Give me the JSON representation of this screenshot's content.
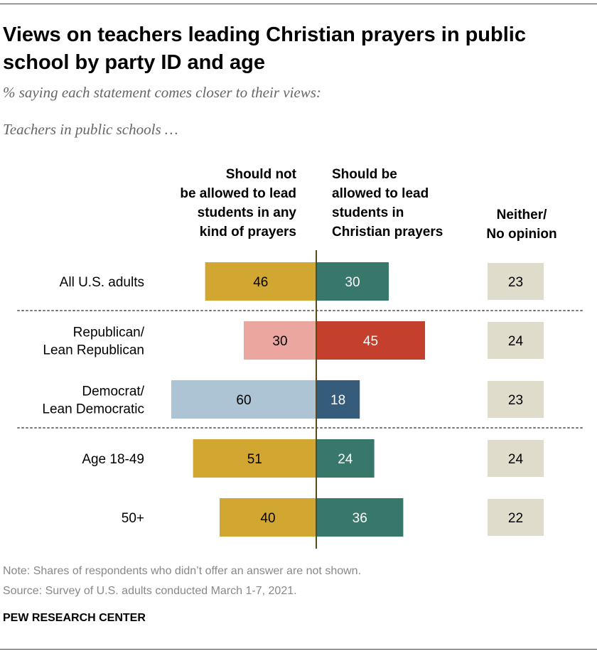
{
  "title": "Views on teachers leading Christian prayers in public school by party ID and age",
  "subtitle": "% saying each statement comes closer to their views:",
  "subtitle2": "Teachers in public schools …",
  "columns": {
    "left": [
      "Should not",
      "be allowed to lead",
      "students in any",
      "kind of prayers"
    ],
    "mid": [
      "Should be",
      "allowed to lead",
      "students in",
      "Christian prayers"
    ],
    "right": [
      "Neither/",
      "No opinion"
    ]
  },
  "chart_data": {
    "type": "bar",
    "categories": [
      "All U.S. adults",
      "Republican/\nLean Republican",
      "Democrat/\nLean Democratic",
      "Age 18-49",
      "50+"
    ],
    "series": [
      {
        "name": "Should not be allowed to lead students in any kind of prayers",
        "values": [
          46,
          30,
          60,
          51,
          40
        ]
      },
      {
        "name": "Should be allowed to lead students in Christian prayers",
        "values": [
          30,
          45,
          18,
          24,
          36
        ]
      },
      {
        "name": "Neither/No opinion",
        "values": [
          23,
          24,
          23,
          24,
          22
        ]
      }
    ],
    "row_colors": [
      {
        "left": "#d1a731",
        "right": "#37786a"
      },
      {
        "left": "#eba6a0",
        "right": "#c5402c"
      },
      {
        "left": "#adc4d4",
        "right": "#365c7c"
      },
      {
        "left": "#d1a731",
        "right": "#37786a"
      },
      {
        "left": "#d1a731",
        "right": "#37786a"
      }
    ],
    "row_text_colors": [
      {
        "left": "#000000",
        "right": "#ffffff"
      },
      {
        "left": "#000000",
        "right": "#ffffff"
      },
      {
        "left": "#000000",
        "right": "#ffffff"
      },
      {
        "left": "#000000",
        "right": "#ffffff"
      },
      {
        "left": "#000000",
        "right": "#ffffff"
      }
    ],
    "neither_color": "#dfdccb",
    "xlim": [
      -60,
      60
    ]
  },
  "footer": {
    "note": "Note: Shares of respondents who didn’t offer an answer are not shown.",
    "source": "Source: Survey of U.S. adults conducted March 1-7, 2021.",
    "brand": "PEW RESEARCH CENTER"
  }
}
